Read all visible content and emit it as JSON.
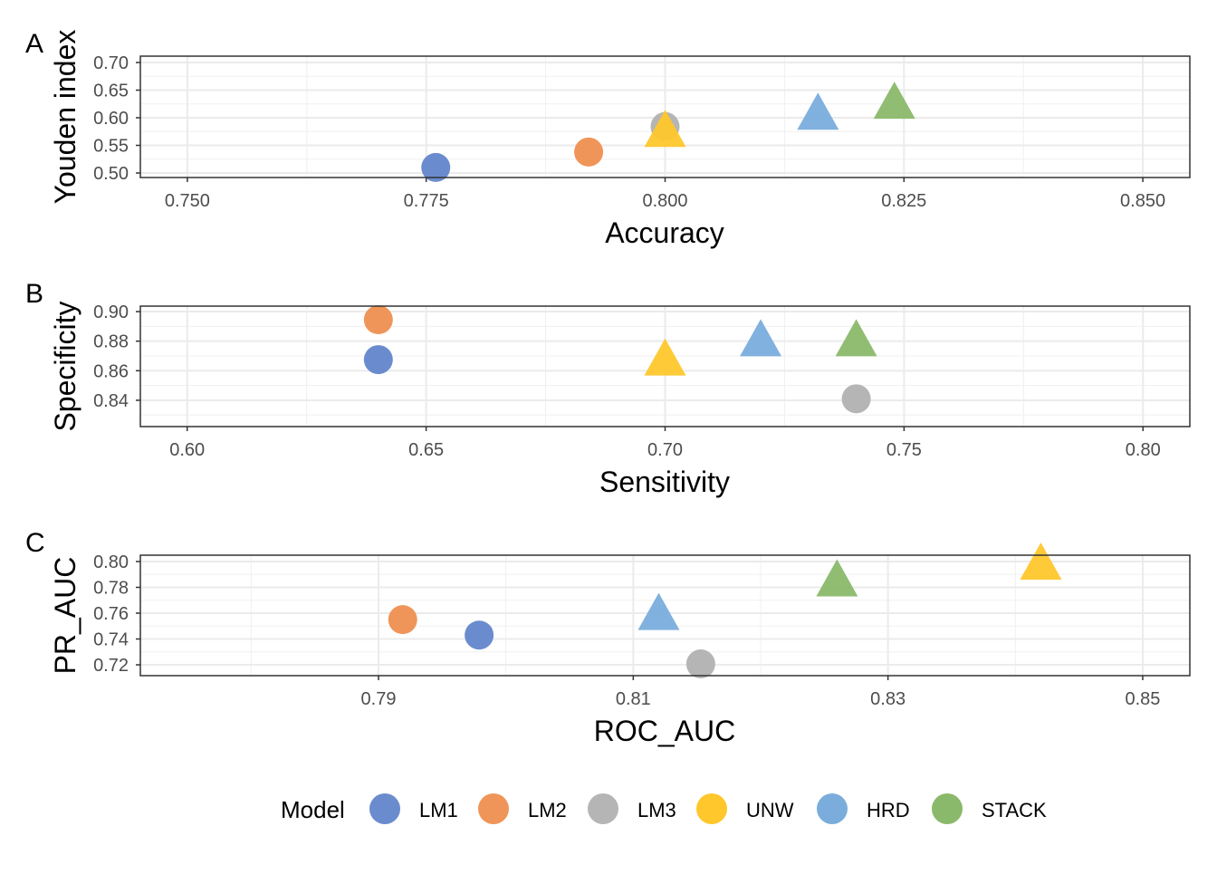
{
  "chart_data": [
    {
      "type": "scatter",
      "tag": "A",
      "xlabel": "Accuracy",
      "ylabel": "Youden index",
      "xlim": [
        0.74508,
        0.85492
      ],
      "ylim": [
        0.4918,
        0.7115
      ],
      "xticks": [
        0.75,
        0.775,
        0.8,
        0.825,
        0.85
      ],
      "xtick_labels": [
        "0.750",
        "0.775",
        "0.800",
        "0.825",
        "0.850"
      ],
      "yticks": [
        0.5,
        0.55,
        0.6,
        0.65,
        0.7
      ],
      "ytick_labels": [
        "0.50",
        "0.55",
        "0.60",
        "0.65",
        "0.70"
      ],
      "points": [
        {
          "model": "LM1",
          "x": 0.776,
          "y": 0.51
        },
        {
          "model": "LM2",
          "x": 0.792,
          "y": 0.538
        },
        {
          "model": "LM3",
          "x": 0.8,
          "y": 0.584
        },
        {
          "model": "UNW",
          "x": 0.8,
          "y": 0.58
        },
        {
          "model": "HRD",
          "x": 0.816,
          "y": 0.611
        },
        {
          "model": "STACK",
          "x": 0.824,
          "y": 0.631
        }
      ]
    },
    {
      "type": "scatter",
      "tag": "B",
      "xlabel": "Sensitivity",
      "ylabel": "Specificity",
      "xlim": [
        0.5902,
        0.8098
      ],
      "ylim": [
        0.8222,
        0.9037
      ],
      "xticks": [
        0.6,
        0.65,
        0.7,
        0.75,
        0.8
      ],
      "xtick_labels": [
        "0.60",
        "0.65",
        "0.70",
        "0.75",
        "0.80"
      ],
      "yticks": [
        0.84,
        0.86,
        0.88,
        0.9
      ],
      "ytick_labels": [
        "0.84",
        "0.86",
        "0.88",
        "0.90"
      ],
      "points": [
        {
          "model": "LM1",
          "x": 0.64,
          "y": 0.8675
        },
        {
          "model": "LM2",
          "x": 0.64,
          "y": 0.8945
        },
        {
          "model": "LM3",
          "x": 0.74,
          "y": 0.841
        },
        {
          "model": "UNW",
          "x": 0.7,
          "y": 0.869
        },
        {
          "model": "HRD",
          "x": 0.72,
          "y": 0.882
        },
        {
          "model": "STACK",
          "x": 0.74,
          "y": 0.882
        }
      ]
    },
    {
      "type": "scatter",
      "tag": "C",
      "xlabel": "ROC_AUC",
      "ylabel": "PR_AUC",
      "xlim": [
        0.7713,
        0.8537
      ],
      "ylim": [
        0.7116,
        0.8049
      ],
      "xticks": [
        0.79,
        0.81,
        0.83,
        0.85
      ],
      "xtick_labels": [
        "0.79",
        "0.81",
        "0.83",
        "0.85"
      ],
      "yticks": [
        0.72,
        0.74,
        0.76,
        0.78,
        0.8
      ],
      "ytick_labels": [
        "0.72",
        "0.74",
        "0.76",
        "0.78",
        "0.80"
      ],
      "points": [
        {
          "model": "LM1",
          "x": 0.7979,
          "y": 0.743
        },
        {
          "model": "LM2",
          "x": 0.7919,
          "y": 0.755
        },
        {
          "model": "LM3",
          "x": 0.8153,
          "y": 0.7207
        },
        {
          "model": "UNW",
          "x": 0.842,
          "y": 0.8
        },
        {
          "model": "HRD",
          "x": 0.812,
          "y": 0.761
        },
        {
          "model": "STACK",
          "x": 0.826,
          "y": 0.787
        }
      ]
    }
  ],
  "legend": {
    "title": "Model",
    "items": [
      {
        "label": "LM1",
        "color": "#6a8ccf",
        "shape": "circle"
      },
      {
        "label": "LM2",
        "color": "#f0955a",
        "shape": "circle"
      },
      {
        "label": "LM3",
        "color": "#b5b5b5",
        "shape": "circle"
      },
      {
        "label": "UNW",
        "color": "#ffc72c",
        "shape": "triangle"
      },
      {
        "label": "HRD",
        "color": "#7aaddc",
        "shape": "triangle"
      },
      {
        "label": "STACK",
        "color": "#8bb96b",
        "shape": "triangle"
      }
    ]
  }
}
